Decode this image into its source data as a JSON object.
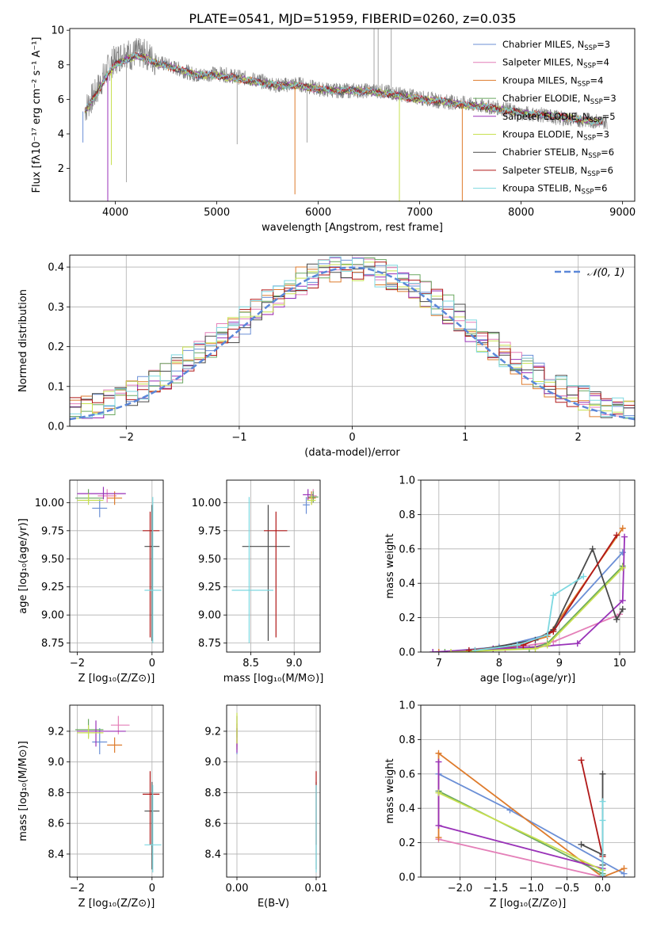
{
  "figure_title": "PLATE=0541, MJD=51959, FIBERID=0260, z=0.035",
  "colors": {
    "cm": "#6b8fd6",
    "sm": "#e47fb8",
    "km": "#de7b2c",
    "ce": "#6aa860",
    "se": "#9932b8",
    "ke": "#c8e050",
    "cs": "#4a4a4a",
    "ss": "#b01818",
    "ks": "#7dd8e0"
  },
  "chart_data": [
    {
      "id": "spectrum",
      "type": "line",
      "xlabel": "wavelength [Angstrom, rest frame]",
      "ylabel": "Flux [fλ10⁻¹⁷ erg cm⁻² s⁻¹ A⁻¹]",
      "xlim": [
        3550,
        9120
      ],
      "ylim": [
        0.1,
        10.1
      ],
      "xticks": [
        "4000",
        "5000",
        "6000",
        "7000",
        "8000",
        "9000"
      ],
      "yticks": [
        "2",
        "4",
        "6",
        "8",
        "10"
      ],
      "grid": false,
      "legend_position": "top-right",
      "legend": [
        {
          "key": "cm",
          "text": "Chabrier MILES, N",
          "sub": "SSP",
          "suffix": "=3"
        },
        {
          "key": "sm",
          "text": "Salpeter MILES, N",
          "sub": "SSP",
          "suffix": "=4"
        },
        {
          "key": "km",
          "text": "Kroupa MILES, N",
          "sub": "SSP",
          "suffix": "=4"
        },
        {
          "key": "ce",
          "text": "Chabrier ELODIE, N",
          "sub": "SSP",
          "suffix": "=3"
        },
        {
          "key": "se",
          "text": "Salpeter ELODIE, N",
          "sub": "SSP",
          "suffix": "=5"
        },
        {
          "key": "ke",
          "text": "Kroupa ELODIE, N",
          "sub": "SSP",
          "suffix": "=3"
        },
        {
          "key": "cs",
          "text": "Chabrier STELIB, N",
          "sub": "SSP",
          "suffix": "=6"
        },
        {
          "key": "ss",
          "text": "Salpeter STELIB, N",
          "sub": "SSP",
          "suffix": "=6"
        },
        {
          "key": "ks",
          "text": "Kroupa STELIB, N",
          "sub": "SSP",
          "suffix": "=6"
        }
      ],
      "data_series": {
        "color": "#808080",
        "x": [
          3700,
          3750,
          3800,
          3850,
          3900,
          3950,
          4000,
          4050,
          4100,
          4150,
          4200,
          4300,
          4400,
          4500,
          4600,
          4800,
          5000,
          5200,
          5400,
          5600,
          5800,
          6000,
          6200,
          6400,
          6600,
          6800,
          7000,
          7200,
          7400,
          7600,
          7800,
          8000,
          8200,
          8400,
          8600,
          8800
        ],
        "y": [
          5.4,
          5.9,
          6.3,
          6.9,
          7.5,
          8.0,
          8.3,
          8.5,
          8.8,
          8.5,
          8.7,
          8.6,
          8.2,
          8.0,
          7.8,
          7.4,
          7.5,
          7.3,
          7.1,
          6.8,
          6.9,
          6.6,
          6.5,
          6.5,
          6.5,
          6.3,
          6.1,
          5.9,
          5.8,
          5.6,
          5.5,
          5.2,
          5.1,
          4.9,
          4.8,
          4.7
        ]
      },
      "model_series": {
        "x": [
          3700,
          3800,
          3900,
          4000,
          4100,
          4200,
          4300,
          4400,
          4600,
          4800,
          5000,
          5200,
          5400,
          5600,
          5800,
          6000,
          6200,
          6400,
          6600,
          6800,
          7000,
          7200,
          7400,
          7600,
          7800,
          8000,
          8200,
          8400,
          8600,
          8800
        ],
        "y": [
          5.3,
          6.2,
          7.2,
          8.0,
          8.3,
          8.5,
          8.4,
          8.1,
          7.8,
          7.4,
          7.4,
          7.2,
          7.0,
          6.8,
          6.8,
          6.6,
          6.5,
          6.5,
          6.4,
          6.2,
          6.0,
          5.9,
          5.7,
          5.6,
          5.4,
          5.2,
          5.1,
          5.0,
          4.8,
          4.7
        ]
      }
    },
    {
      "id": "residuals",
      "type": "bar",
      "xlabel": "(data-model)/error",
      "ylabel": "Normed distribution",
      "xlim": [
        -2.5,
        2.5
      ],
      "ylim": [
        0,
        0.43
      ],
      "xticks": [
        "−2",
        "−1",
        "0",
        "1",
        "2"
      ],
      "yticks": [
        "0.0",
        "0.1",
        "0.2",
        "0.3",
        "0.4"
      ],
      "grid": true,
      "legend_position": "top-right",
      "gaussian_label": "𝒩(0, 1)",
      "gaussian_color": "#5b87d8"
    },
    {
      "id": "age_vs_Z",
      "type": "scatter",
      "xlabel": "Z [log₁₀(Z/Z⊙)]",
      "ylabel": "age  [log₁₀(age/yr)]",
      "xlim": [
        -2.2,
        0.3
      ],
      "ylim": [
        8.67,
        10.2
      ],
      "xticks": [
        "−2",
        "0"
      ],
      "yticks": [
        "8.75",
        "9.00",
        "9.25",
        "9.50",
        "9.75",
        "10.00"
      ],
      "grid": true,
      "points": [
        {
          "key": "cm",
          "x": -1.4,
          "y": 9.95,
          "xe": [
            -1.6,
            -1.2
          ],
          "ye": [
            9.87,
            10.03
          ]
        },
        {
          "key": "sm",
          "x": -1.2,
          "y": 10.06,
          "xe": [
            -1.45,
            -0.95
          ],
          "ye": [
            10.0,
            10.12
          ]
        },
        {
          "key": "km",
          "x": -1.0,
          "y": 10.04,
          "xe": [
            -1.2,
            -0.8
          ],
          "ye": [
            9.98,
            10.1
          ]
        },
        {
          "key": "ce",
          "x": -1.7,
          "y": 10.04,
          "xe": [
            -2.05,
            -1.3
          ],
          "ye": [
            10.0,
            10.12
          ]
        },
        {
          "key": "se",
          "x": -1.3,
          "y": 10.08,
          "xe": [
            -2.0,
            -0.7
          ],
          "ye": [
            10.03,
            10.14
          ]
        },
        {
          "key": "ke",
          "x": -1.7,
          "y": 10.02,
          "xe": [
            -2.0,
            -1.3
          ],
          "ye": [
            9.98,
            10.08
          ]
        },
        {
          "key": "cs",
          "x": 0.0,
          "y": 9.61,
          "xe": [
            -0.2,
            0.2
          ],
          "ye": [
            8.77,
            9.98
          ]
        },
        {
          "key": "ss",
          "x": -0.05,
          "y": 9.75,
          "xe": [
            -0.25,
            0.2
          ],
          "ye": [
            8.8,
            9.92
          ]
        },
        {
          "key": "ks",
          "x": 0.02,
          "y": 9.22,
          "xe": [
            -0.2,
            0.25
          ],
          "ye": [
            8.75,
            10.05
          ]
        }
      ]
    },
    {
      "id": "age_vs_mass",
      "type": "scatter",
      "xlabel": "mass [log₁₀(M/M⊙)]",
      "ylabel": "",
      "xlim": [
        8.22,
        9.3
      ],
      "ylim": [
        8.67,
        10.2
      ],
      "xticks": [
        "8.5",
        "9.0"
      ],
      "yticks": [
        "8.75",
        "9.00",
        "9.25",
        "9.50",
        "9.75",
        "10.00"
      ],
      "grid": true,
      "points": [
        {
          "key": "cm",
          "x": 9.14,
          "y": 9.98,
          "xe": [
            9.1,
            9.18
          ],
          "ye": [
            9.9,
            10.05
          ]
        },
        {
          "key": "sm",
          "x": 9.22,
          "y": 10.06,
          "xe": [
            9.18,
            9.26
          ],
          "ye": [
            10.0,
            10.12
          ]
        },
        {
          "key": "km",
          "x": 9.2,
          "y": 10.04,
          "xe": [
            9.15,
            9.25
          ],
          "ye": [
            9.98,
            10.1
          ]
        },
        {
          "key": "ce",
          "x": 9.22,
          "y": 10.05,
          "xe": [
            9.16,
            9.28
          ],
          "ye": [
            10.0,
            10.1
          ]
        },
        {
          "key": "se",
          "x": 9.16,
          "y": 10.07,
          "xe": [
            9.1,
            9.22
          ],
          "ye": [
            10.02,
            10.12
          ]
        },
        {
          "key": "ke",
          "x": 9.2,
          "y": 10.02,
          "xe": [
            9.15,
            9.25
          ],
          "ye": [
            9.98,
            10.08
          ]
        },
        {
          "key": "cs",
          "x": 8.7,
          "y": 9.61,
          "xe": [
            8.4,
            8.95
          ],
          "ye": [
            8.77,
            9.98
          ]
        },
        {
          "key": "ss",
          "x": 8.79,
          "y": 9.75,
          "xe": [
            8.65,
            8.92
          ],
          "ye": [
            8.8,
            9.92
          ]
        },
        {
          "key": "ks",
          "x": 8.48,
          "y": 9.22,
          "xe": [
            8.28,
            8.76
          ],
          "ye": [
            8.75,
            10.05
          ]
        }
      ]
    },
    {
      "id": "mass_weight_vs_age",
      "type": "line",
      "xlabel": "age  [log₁₀(age/yr)]",
      "ylabel": "mass weight",
      "xlim": [
        6.7,
        10.25
      ],
      "ylim": [
        0,
        1.0
      ],
      "xticks": [
        "7",
        "8",
        "9",
        "10"
      ],
      "yticks": [
        "0.0",
        "0.2",
        "0.4",
        "0.6",
        "0.8",
        "1.0"
      ],
      "grid": true,
      "series": [
        {
          "key": "cm",
          "x": [
            7.0,
            8.0,
            8.8,
            10.05
          ],
          "y": [
            0.0,
            0.03,
            0.1,
            0.58
          ]
        },
        {
          "key": "sm",
          "x": [
            7.0,
            8.1,
            8.9,
            10.0
          ],
          "y": [
            0.0,
            0.02,
            0.06,
            0.22
          ]
        },
        {
          "key": "km",
          "x": [
            7.0,
            8.2,
            8.8,
            10.05
          ],
          "y": [
            0.0,
            0.03,
            0.09,
            0.72
          ]
        },
        {
          "key": "ce",
          "x": [
            7.1,
            8.5,
            8.8,
            10.05
          ],
          "y": [
            0.0,
            0.02,
            0.05,
            0.5
          ]
        },
        {
          "key": "se",
          "x": [
            6.9,
            7.9,
            8.6,
            9.3,
            10.05,
            10.08
          ],
          "y": [
            0.0,
            0.02,
            0.03,
            0.05,
            0.3,
            0.67
          ]
        },
        {
          "key": "ke",
          "x": [
            7.2,
            8.6,
            8.8,
            10.05
          ],
          "y": [
            0.0,
            0.02,
            0.04,
            0.49
          ]
        },
        {
          "key": "cs",
          "x": [
            7.6,
            8.6,
            8.9,
            9.55,
            9.95,
            10.05
          ],
          "y": [
            0.01,
            0.07,
            0.13,
            0.6,
            0.19,
            0.25
          ]
        },
        {
          "key": "ss",
          "x": [
            7.5,
            8.4,
            8.9,
            9.95
          ],
          "y": [
            0.01,
            0.04,
            0.12,
            0.68
          ]
        },
        {
          "key": "ks",
          "x": [
            7.6,
            8.3,
            8.8,
            8.9,
            9.4
          ],
          "y": [
            0.01,
            0.04,
            0.1,
            0.33,
            0.44
          ]
        }
      ]
    },
    {
      "id": "mass_vs_Z",
      "type": "scatter",
      "xlabel": "Z [log₁₀(Z/Z⊙)]",
      "ylabel": "mass [log₁₀(M/M⊙)]",
      "xlim": [
        -2.2,
        0.3
      ],
      "ylim": [
        8.25,
        9.37
      ],
      "xticks": [
        "−2",
        "0"
      ],
      "yticks": [
        "8.4",
        "8.6",
        "8.8",
        "9.0",
        "9.2"
      ],
      "grid": true,
      "points": [
        {
          "key": "cm",
          "x": -1.4,
          "y": 9.13,
          "xe": [
            -1.6,
            -1.2
          ],
          "ye": [
            9.05,
            9.22
          ]
        },
        {
          "key": "sm",
          "x": -0.9,
          "y": 9.24,
          "xe": [
            -1.1,
            -0.6
          ],
          "ye": [
            9.18,
            9.3
          ]
        },
        {
          "key": "km",
          "x": -1.0,
          "y": 9.11,
          "xe": [
            -1.2,
            -0.8
          ],
          "ye": [
            9.06,
            9.16
          ]
        },
        {
          "key": "ce",
          "x": -1.7,
          "y": 9.21,
          "xe": [
            -2.05,
            -1.3
          ],
          "ye": [
            9.16,
            9.28
          ]
        },
        {
          "key": "se",
          "x": -1.5,
          "y": 9.2,
          "xe": [
            -2.0,
            -0.7
          ],
          "ye": [
            9.1,
            9.27
          ]
        },
        {
          "key": "ke",
          "x": -1.7,
          "y": 9.19,
          "xe": [
            -2.0,
            -1.3
          ],
          "ye": [
            9.15,
            9.24
          ]
        },
        {
          "key": "cs",
          "x": 0.0,
          "y": 8.68,
          "xe": [
            -0.2,
            0.2
          ],
          "ye": [
            8.3,
            8.87
          ]
        },
        {
          "key": "ss",
          "x": -0.05,
          "y": 8.79,
          "xe": [
            -0.25,
            0.2
          ],
          "ye": [
            8.46,
            8.94
          ]
        },
        {
          "key": "ks",
          "x": 0.02,
          "y": 8.46,
          "xe": [
            -0.2,
            0.25
          ],
          "ye": [
            8.28,
            8.85
          ]
        }
      ]
    },
    {
      "id": "mass_vs_ebv",
      "type": "scatter",
      "xlabel": "E(B-V)",
      "ylabel": "",
      "xlim": [
        -0.0013,
        0.0105
      ],
      "ylim": [
        8.25,
        9.37
      ],
      "xticks": [
        "0.00",
        "0.01"
      ],
      "yticks": [
        "8.4",
        "8.6",
        "8.8",
        "9.0",
        "9.2"
      ],
      "grid": true,
      "points": [
        {
          "key": "cm",
          "x": 0.0,
          "y": 9.13,
          "xe": [
            0.0,
            0.0
          ],
          "ye": [
            9.05,
            9.22
          ]
        },
        {
          "key": "sm",
          "x": 0.0,
          "y": 9.2,
          "xe": [
            0.0,
            0.0
          ],
          "ye": [
            9.1,
            9.3
          ]
        },
        {
          "key": "km",
          "x": 0.0,
          "y": 9.15,
          "xe": [
            0.0,
            0.0
          ],
          "ye": [
            9.08,
            9.25
          ]
        },
        {
          "key": "ce",
          "x": 0.0,
          "y": 9.22,
          "xe": [
            0.0,
            0.0
          ],
          "ye": [
            9.16,
            9.3
          ]
        },
        {
          "key": "se",
          "x": 0.0,
          "y": 9.14,
          "xe": [
            0.0,
            0.0
          ],
          "ye": [
            9.06,
            9.22
          ]
        },
        {
          "key": "ke",
          "x": 0.0,
          "y": 9.2,
          "xe": [
            0.0,
            0.0
          ],
          "ye": [
            9.12,
            9.32
          ]
        },
        {
          "key": "cs",
          "x": 0.01,
          "y": 8.6,
          "xe": [
            0.01,
            0.01
          ],
          "ye": [
            8.3,
            8.87
          ]
        },
        {
          "key": "ss",
          "x": 0.01,
          "y": 8.79,
          "xe": [
            0.01,
            0.01
          ],
          "ye": [
            8.46,
            8.94
          ]
        },
        {
          "key": "ks",
          "x": 0.01,
          "y": 8.5,
          "xe": [
            0.01,
            0.01
          ],
          "ye": [
            8.28,
            8.85
          ]
        }
      ]
    },
    {
      "id": "mass_weight_vs_Z",
      "type": "line",
      "xlabel": "Z [log₁₀(Z/Z⊙)]",
      "ylabel": "mass weight",
      "xlim": [
        -2.55,
        0.45
      ],
      "ylim": [
        0,
        1.0
      ],
      "xticks": [
        "−2.0",
        "−1.5",
        "−1.0",
        "−0.5",
        "0.0"
      ],
      "yticks": [
        "0.0",
        "0.2",
        "0.4",
        "0.6",
        "0.8",
        "1.0"
      ],
      "grid": true,
      "series": [
        {
          "key": "cm",
          "x": [
            -2.3,
            -1.3,
            0.3
          ],
          "y": [
            0.6,
            0.39,
            0.02
          ]
        },
        {
          "key": "sm",
          "x": [
            -2.3,
            0.0
          ],
          "y": [
            0.22,
            0.0
          ]
        },
        {
          "key": "km",
          "x": [
            -2.3,
            -2.3,
            0.0,
            0.3
          ],
          "y": [
            0.23,
            0.72,
            0.0,
            0.05
          ]
        },
        {
          "key": "ce",
          "x": [
            -2.3,
            0.0
          ],
          "y": [
            0.5,
            0.02
          ]
        },
        {
          "key": "se",
          "x": [
            -2.3,
            -2.3,
            0.0,
            0.0
          ],
          "y": [
            0.67,
            0.3,
            0.05,
            0.0
          ]
        },
        {
          "key": "ke",
          "x": [
            -2.3,
            0.0
          ],
          "y": [
            0.49,
            0.04
          ]
        },
        {
          "key": "cs",
          "x": [
            -0.3,
            0.0,
            0.0,
            0.0
          ],
          "y": [
            0.19,
            0.13,
            0.6,
            0.07
          ]
        },
        {
          "key": "ss",
          "x": [
            -0.3,
            0.0
          ],
          "y": [
            0.68,
            0.12
          ]
        },
        {
          "key": "ks",
          "x": [
            0.0,
            0.0,
            0.0
          ],
          "y": [
            0.01,
            0.44,
            0.33
          ]
        }
      ]
    }
  ]
}
